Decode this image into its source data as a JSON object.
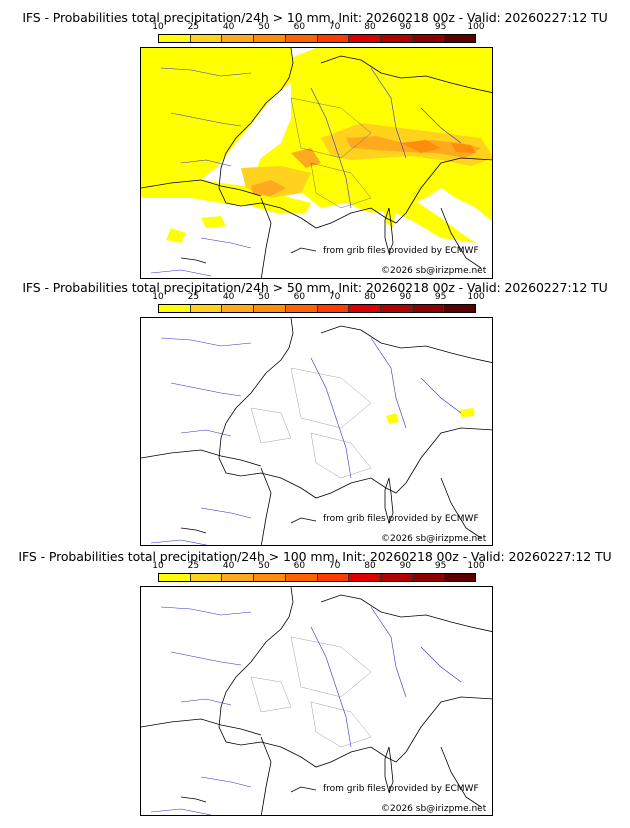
{
  "panels": [
    {
      "title": "IFS - Probabilities total precipitation/24h > 10 mm, Init: 20260218 00z - Valid: 20260227:12 TU"
    },
    {
      "title": "IFS - Probabilities total precipitation/24h > 50 mm, Init: 20260218 00z - Valid: 20260227:12 TU"
    },
    {
      "title": "IFS - Probabilities total precipitation/24h > 100 mm, Init: 20260218 00z - Valid: 20260227:12 TU"
    }
  ],
  "colorbar": {
    "ticks": [
      "10",
      "25",
      "40",
      "50",
      "60",
      "70",
      "80",
      "90",
      "95",
      "100"
    ],
    "colors": [
      "#ffff00",
      "#ffd21e",
      "#ffaa1e",
      "#ff8c0a",
      "#ff6400",
      "#ff3c00",
      "#dc0000",
      "#b40000",
      "#8c0000",
      "#5a0000"
    ]
  },
  "credits": {
    "source": "from grib files provided by ECMWF",
    "copyright": "©2026 sb@irizpme.net"
  }
}
